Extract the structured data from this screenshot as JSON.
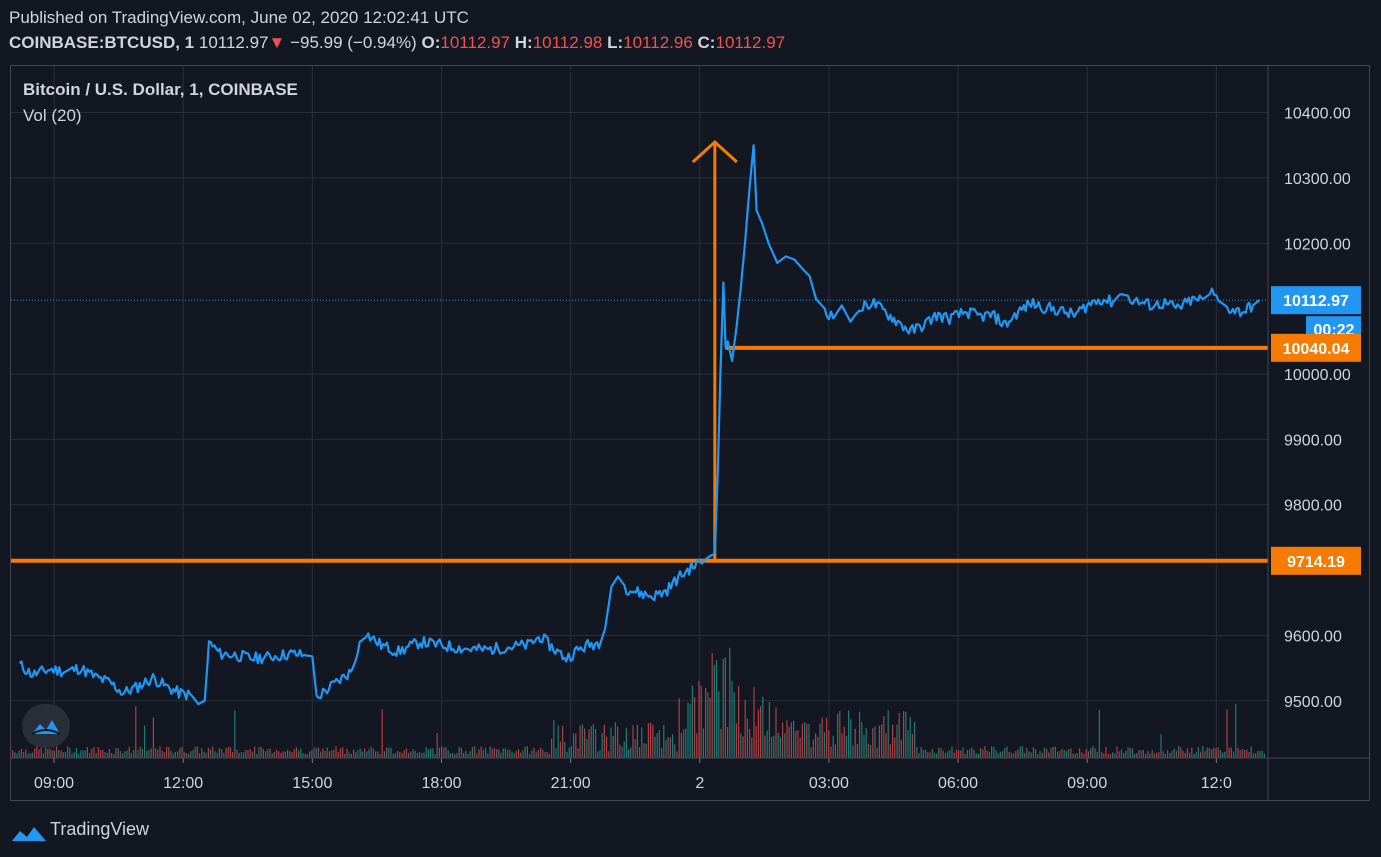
{
  "header": {
    "published": "Published on TradingView.com, June 02, 2020 12:02:41 UTC",
    "symbol": "COINBASE:BTCUSD, 1",
    "last": "10112.97",
    "change_arrow": "▼",
    "change": "−95.99 (−0.94%)",
    "o_label": "O:",
    "o_value": "10112.97",
    "h_label": "H:",
    "h_value": "10112.98",
    "l_label": "L:",
    "l_value": "10112.96",
    "c_label": "C:",
    "c_value": "10112.97"
  },
  "legend": {
    "title": "Bitcoin / U.S. Dollar, 1, COINBASE",
    "volume": "Vol (20)"
  },
  "footer": {
    "brand": "TradingView"
  },
  "colors": {
    "background": "#131722",
    "grid": "#2a2e39",
    "price_line": "#2196f3",
    "annotation": "#f57c00",
    "volume_up": "#26a69a",
    "volume_down": "#ef5350"
  },
  "chart_data": {
    "type": "line",
    "series": [
      {
        "points": [
          [
            8.2,
            9555
          ],
          [
            8.5,
            9540
          ],
          [
            8.9,
            9548
          ],
          [
            9.3,
            9545
          ],
          [
            9.6,
            9550
          ],
          [
            10,
            9535
          ],
          [
            10.3,
            9528
          ],
          [
            10.6,
            9512
          ],
          [
            10.9,
            9520
          ],
          [
            11.3,
            9535
          ],
          [
            11.6,
            9522
          ],
          [
            11.9,
            9512
          ],
          [
            12.2,
            9508
          ],
          [
            12.35,
            9495
          ],
          [
            12.5,
            9500
          ],
          [
            12.6,
            9590
          ],
          [
            12.85,
            9572
          ],
          [
            13.2,
            9570
          ],
          [
            13.6,
            9565
          ],
          [
            14,
            9567
          ],
          [
            14.5,
            9572
          ],
          [
            14.8,
            9570
          ],
          [
            15,
            9568
          ],
          [
            15.1,
            9505
          ],
          [
            15.3,
            9515
          ],
          [
            15.6,
            9530
          ],
          [
            15.9,
            9545
          ],
          [
            16.1,
            9590
          ],
          [
            16.3,
            9600
          ],
          [
            16.6,
            9585
          ],
          [
            17,
            9575
          ],
          [
            17.5,
            9590
          ],
          [
            18,
            9585
          ],
          [
            18.5,
            9580
          ],
          [
            19,
            9578
          ],
          [
            19.5,
            9582
          ],
          [
            20,
            9585
          ],
          [
            20.3,
            9598
          ],
          [
            20.6,
            9580
          ],
          [
            20.9,
            9565
          ],
          [
            21.1,
            9575
          ],
          [
            21.4,
            9585
          ],
          [
            21.7,
            9590
          ],
          [
            21.8,
            9610
          ],
          [
            21.95,
            9675
          ],
          [
            22.1,
            9690
          ],
          [
            22.3,
            9672
          ],
          [
            22.6,
            9665
          ],
          [
            22.9,
            9660
          ],
          [
            23.2,
            9667
          ],
          [
            23.5,
            9688
          ],
          [
            23.8,
            9704
          ],
          [
            24.1,
            9715
          ],
          [
            24.25,
            9722
          ],
          [
            24.35,
            9725
          ],
          [
            24.42,
            9850
          ],
          [
            24.48,
            10000
          ],
          [
            24.55,
            10140
          ],
          [
            24.6,
            10040
          ],
          [
            24.65,
            10050
          ],
          [
            24.75,
            10020
          ],
          [
            24.85,
            10070
          ],
          [
            24.95,
            10130
          ],
          [
            25.05,
            10200
          ],
          [
            25.15,
            10280
          ],
          [
            25.25,
            10350
          ],
          [
            25.32,
            10250
          ],
          [
            25.45,
            10230
          ],
          [
            25.6,
            10200
          ],
          [
            25.8,
            10170
          ],
          [
            26.0,
            10180
          ],
          [
            26.2,
            10175
          ],
          [
            26.4,
            10160
          ],
          [
            26.55,
            10150
          ],
          [
            26.7,
            10115
          ],
          [
            26.9,
            10100
          ],
          [
            27.1,
            10085
          ],
          [
            27.3,
            10105
          ],
          [
            27.5,
            10080
          ],
          [
            27.7,
            10098
          ],
          [
            28.0,
            10110
          ],
          [
            28.3,
            10095
          ],
          [
            28.6,
            10080
          ],
          [
            28.9,
            10065
          ],
          [
            29.2,
            10075
          ],
          [
            29.5,
            10090
          ],
          [
            29.8,
            10085
          ],
          [
            30.2,
            10095
          ],
          [
            30.5,
            10088
          ],
          [
            30.8,
            10090
          ],
          [
            31.1,
            10075
          ],
          [
            31.4,
            10095
          ],
          [
            31.7,
            10108
          ],
          [
            32.0,
            10102
          ],
          [
            32.3,
            10098
          ],
          [
            32.7,
            10090
          ],
          [
            33.0,
            10105
          ],
          [
            33.3,
            10115
          ],
          [
            33.6,
            10110
          ],
          [
            33.8,
            10125
          ],
          [
            34.0,
            10115
          ],
          [
            34.2,
            10110
          ],
          [
            34.5,
            10105
          ],
          [
            34.8,
            10108
          ],
          [
            35.1,
            10100
          ],
          [
            35.4,
            10112
          ],
          [
            35.7,
            10115
          ],
          [
            35.9,
            10125
          ],
          [
            36.1,
            10110
          ],
          [
            36.3,
            10100
          ],
          [
            36.6,
            10095
          ],
          [
            36.85,
            10105
          ],
          [
            37.0,
            10112.97
          ]
        ]
      }
    ],
    "volume_note": "Volume histogram under price, spikes near 23:00–01:00",
    "x_ticks": [
      "09:00",
      "12:00",
      "15:00",
      "18:00",
      "21:00",
      "2",
      "03:00",
      "06:00",
      "09:00",
      "12:0"
    ],
    "y_ticks": [
      "10400.00",
      "10300.00",
      "10200.00",
      "10000.00",
      "9900.00",
      "9800.00",
      "9600.00",
      "9500.00"
    ],
    "y_range": [
      9430,
      10470
    ],
    "x_range_hours": [
      8.0,
      37.2
    ],
    "price_tag": {
      "label": "10112.97",
      "countdown": "00:22"
    },
    "annotations": [
      {
        "type": "horizontal_line",
        "label": "10040.04",
        "value": 10040.04,
        "from_hour": 24.6
      },
      {
        "type": "horizontal_line",
        "label": "9714.19",
        "value": 9714.19,
        "from_hour": 8.0
      },
      {
        "type": "vertical_arrow",
        "hour": 24.35,
        "from": 9714.19,
        "to": 10355
      }
    ]
  }
}
